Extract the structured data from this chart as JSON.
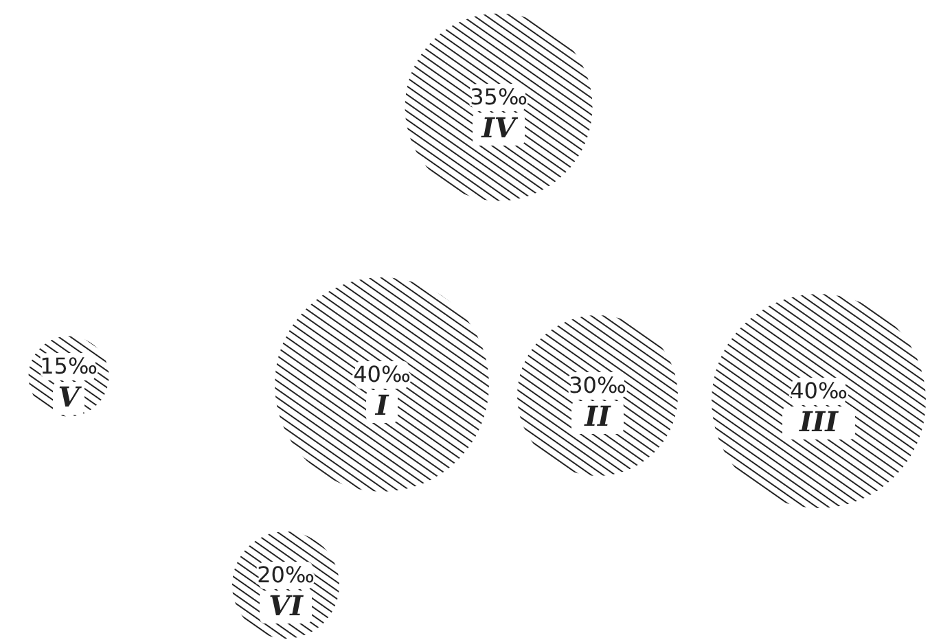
{
  "chart_data": {
    "type": "other",
    "categories": [
      "I",
      "II",
      "III",
      "IV",
      "V",
      "VI"
    ],
    "values": [
      40,
      30,
      40,
      35,
      15,
      20
    ],
    "value_labels": [
      "40‰",
      "30‰",
      "40‰",
      "35‰",
      "15‰",
      "20‰"
    ],
    "color": "#222222"
  }
}
